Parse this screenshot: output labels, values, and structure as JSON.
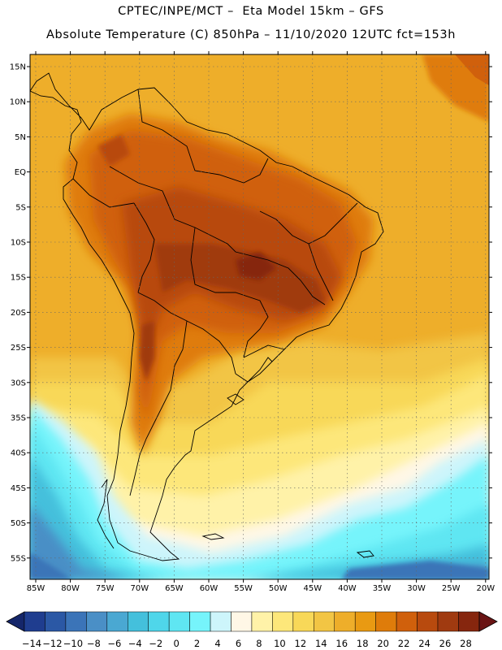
{
  "header": {
    "line1": "CPTEC/INPE/MCT –  Eta Model 15km – GFS",
    "line2": "Absolute Temperature (C) 850hPa – 11/10/2020 12UTC fct=153h"
  },
  "map": {
    "lat_labels": [
      "15N",
      "10N",
      "5N",
      "EQ",
      "5S",
      "10S",
      "15S",
      "20S",
      "25S",
      "30S",
      "35S",
      "40S",
      "45S",
      "50S",
      "55S"
    ],
    "lon_labels": [
      "85W",
      "80W",
      "75W",
      "70W",
      "65W",
      "60W",
      "55W",
      "50W",
      "45W",
      "40W",
      "35W",
      "30W",
      "25W",
      "20W"
    ]
  },
  "colorbar": {
    "labels": [
      "-14",
      "-12",
      "-10",
      "-8",
      "-6",
      "-4",
      "-2",
      "0",
      "2",
      "4",
      "6",
      "8",
      "10",
      "12",
      "14",
      "16",
      "18",
      "20",
      "22",
      "24",
      "26",
      "28"
    ],
    "colors": [
      "#1f3d8f",
      "#2b58a5",
      "#3b74b8",
      "#4a8fc6",
      "#4aa8d2",
      "#44c0dc",
      "#4fd6ea",
      "#5fe6f2",
      "#76f4fb",
      "#cdf5fb",
      "#fff7e6",
      "#fff2a8",
      "#fde77a",
      "#f8d858",
      "#f2c544",
      "#eeae2a",
      "#e99a12",
      "#df7c0a",
      "#d0600c",
      "#b84a0e",
      "#a03a10",
      "#86260e"
    ],
    "low_arrow_color": "#15266a",
    "high_arrow_color": "#6a1414"
  }
}
